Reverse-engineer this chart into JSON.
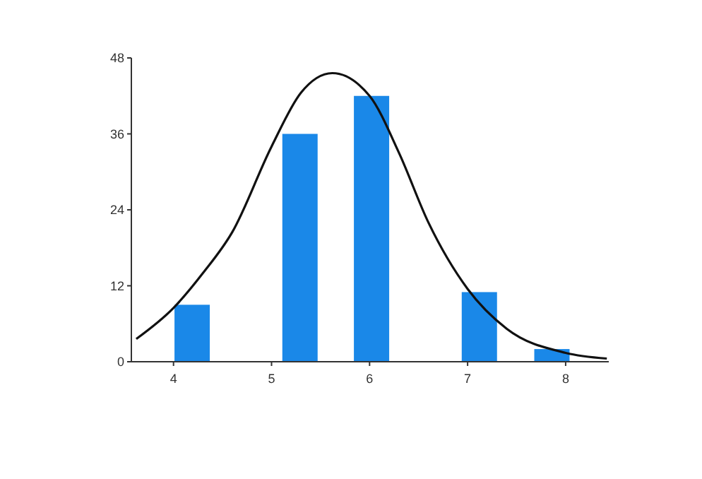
{
  "chart_data": {
    "type": "bar",
    "xlim": [
      3.57,
      8.44
    ],
    "xticks": [
      4,
      5,
      6,
      7,
      8
    ],
    "ylim": [
      0,
      48
    ],
    "yticks": [
      0,
      12,
      24,
      36,
      48
    ],
    "grid": false,
    "series": [
      {
        "color": "#1a88e8",
        "x": [
          4.19,
          5.29,
          6.02,
          7.12,
          7.86
        ],
        "values": [
          9,
          36,
          42,
          11,
          2
        ]
      },
      {
        "type": "line",
        "color": "#111111",
        "marker": "none",
        "line_style": "solid",
        "x": [
          3.62,
          4.0,
          4.3,
          4.6,
          5.0,
          5.3,
          5.62,
          6.0,
          6.3,
          6.6,
          7.0,
          7.4,
          8.0,
          8.42
        ],
        "values": [
          3.6,
          8.5,
          14,
          20.5,
          34,
          42.5,
          45.6,
          42,
          33,
          22,
          11.5,
          5.2,
          1.4,
          0.5
        ]
      }
    ]
  }
}
